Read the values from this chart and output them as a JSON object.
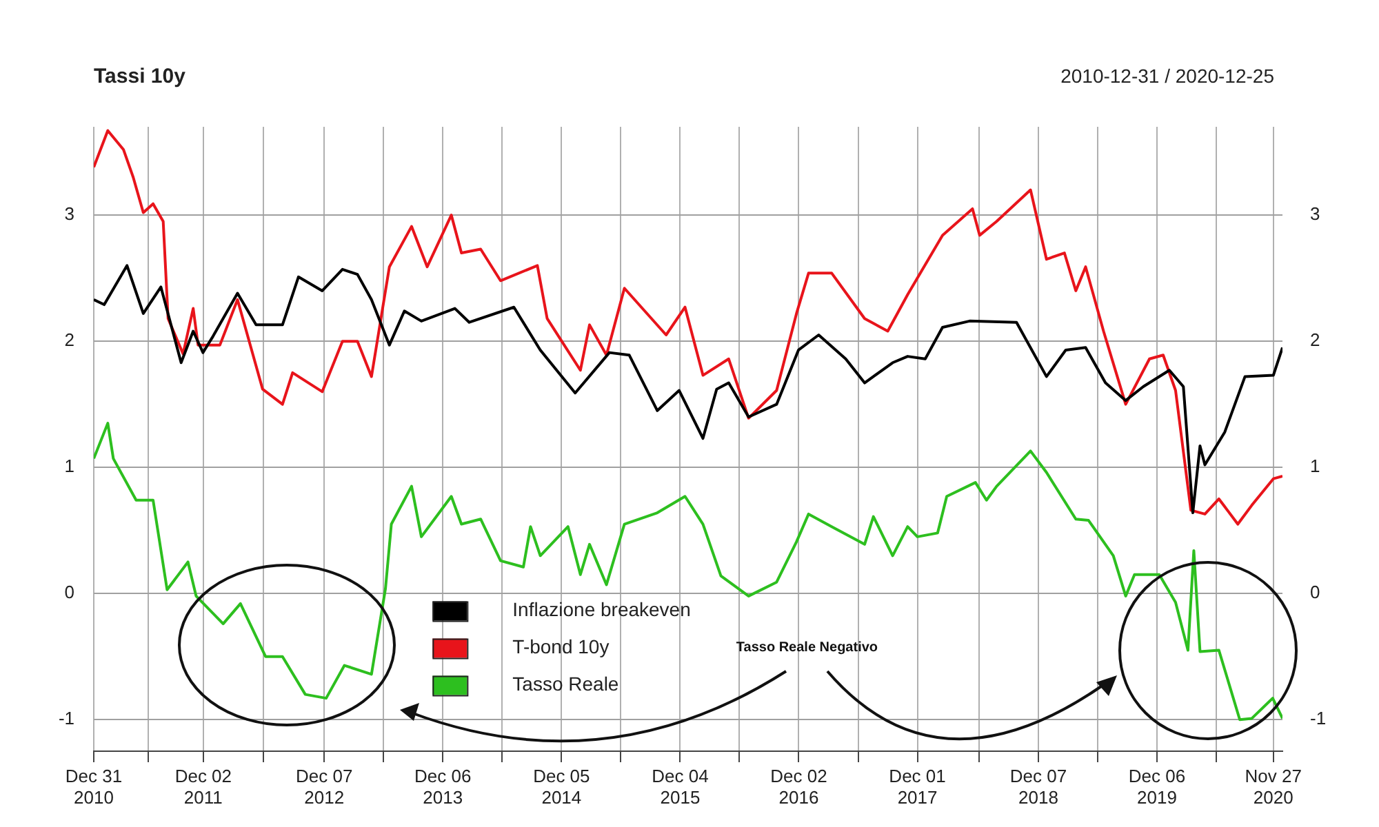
{
  "chart_data": {
    "type": "line",
    "title": "Tassi 10y",
    "subtitle": "2010-12-31 / 2020-12-25",
    "annotations": [
      "Tasso Reale Negativo"
    ],
    "xlim": [
      "2010-12-31",
      "2020-12-25"
    ],
    "xticks": [
      {
        "value": "2010-12-31",
        "label": "Dec 31 2010"
      },
      {
        "value": "2011-06-17",
        "label": null
      },
      {
        "value": "2011-12-02",
        "label": "Dec 02 2011"
      },
      {
        "value": "2012-06-04",
        "label": null
      },
      {
        "value": "2012-12-07",
        "label": "Dec 07 2012"
      },
      {
        "value": "2013-06-07",
        "label": null
      },
      {
        "value": "2013-12-06",
        "label": "Dec 06 2013"
      },
      {
        "value": "2014-06-06",
        "label": null
      },
      {
        "value": "2014-12-05",
        "label": "Dec 05 2014"
      },
      {
        "value": "2015-06-05",
        "label": null
      },
      {
        "value": "2015-12-04",
        "label": "Dec 04 2015"
      },
      {
        "value": "2016-06-03",
        "label": null
      },
      {
        "value": "2016-12-02",
        "label": "Dec 02 2016"
      },
      {
        "value": "2017-06-02",
        "label": null
      },
      {
        "value": "2017-12-01",
        "label": "Dec 01 2017"
      },
      {
        "value": "2018-06-08",
        "label": null
      },
      {
        "value": "2018-12-07",
        "label": "Dec 07 2018"
      },
      {
        "value": "2019-06-07",
        "label": null
      },
      {
        "value": "2019-12-06",
        "label": "Dec 06 2019"
      },
      {
        "value": "2020-06-05",
        "label": null
      },
      {
        "value": "2020-11-27",
        "label": "Nov 27 2020"
      }
    ],
    "ylim": [
      -1.25,
      3.7
    ],
    "yticks": [
      -1,
      0,
      1,
      2,
      3
    ],
    "y2lim": [
      -1.25,
      3.7
    ],
    "y2ticks": [
      -1,
      0,
      1,
      2,
      3
    ],
    "grid": true,
    "legend": "bottom",
    "marker": "none",
    "series": [
      {
        "name": "Inflazione breakeven",
        "color": "#000000",
        "x": [
          "2010-12-31",
          "2011-02-01",
          "2011-04-12",
          "2011-06-01",
          "2011-07-25",
          "2011-09-25",
          "2011-11-01",
          "2011-12-01",
          "2012-01-01",
          "2012-03-16",
          "2012-05-12",
          "2012-08-01",
          "2012-09-19",
          "2012-12-01",
          "2013-02-01",
          "2013-03-19",
          "2013-05-01",
          "2013-06-25",
          "2013-08-10",
          "2013-10-01",
          "2014-01-12",
          "2014-02-25",
          "2014-07-12",
          "2014-10-01",
          "2015-01-16",
          "2015-05-01",
          "2015-07-01",
          "2015-09-25",
          "2015-12-01",
          "2016-02-12",
          "2016-03-25",
          "2016-05-01",
          "2016-07-01",
          "2016-09-25",
          "2016-12-01",
          "2017-02-01",
          "2017-04-25",
          "2017-06-22",
          "2017-09-16",
          "2017-11-01",
          "2017-12-25",
          "2018-02-16",
          "2018-05-10",
          "2018-10-01",
          "2019-01-01",
          "2019-03-01",
          "2019-05-01",
          "2019-07-01",
          "2019-09-01",
          "2019-10-25",
          "2020-01-13",
          "2020-02-25",
          "2020-03-25",
          "2020-04-16",
          "2020-05-01",
          "2020-07-01",
          "2020-09-01",
          "2020-11-27",
          "2020-12-25"
        ],
        "values": [
          2.33,
          2.29,
          2.6,
          2.22,
          2.43,
          1.83,
          2.08,
          1.91,
          2.04,
          2.38,
          2.13,
          2.13,
          2.51,
          2.4,
          2.57,
          2.53,
          2.33,
          1.97,
          2.24,
          2.16,
          2.26,
          2.15,
          2.27,
          1.93,
          1.59,
          1.91,
          1.89,
          1.45,
          1.61,
          1.23,
          1.62,
          1.67,
          1.4,
          1.5,
          1.93,
          2.05,
          1.86,
          1.67,
          1.83,
          1.88,
          1.86,
          2.11,
          2.16,
          2.15,
          1.72,
          1.93,
          1.95,
          1.67,
          1.53,
          1.64,
          1.77,
          1.64,
          0.64,
          1.17,
          1.02,
          1.28,
          1.72,
          1.73,
          1.95
        ]
      },
      {
        "name": "T-bond 10y",
        "color": "#e8141b",
        "x": [
          "2010-12-31",
          "2011-02-12",
          "2011-04-01",
          "2011-05-01",
          "2011-06-01",
          "2011-07-01",
          "2011-08-01",
          "2011-08-16",
          "2011-10-01",
          "2011-11-01",
          "2011-11-16",
          "2012-01-22",
          "2012-03-16",
          "2012-06-01",
          "2012-08-01",
          "2012-09-01",
          "2012-12-01",
          "2013-02-01",
          "2013-03-19",
          "2013-05-01",
          "2013-06-25",
          "2013-09-01",
          "2013-10-19",
          "2014-01-01",
          "2014-02-01",
          "2014-04-01",
          "2014-06-01",
          "2014-09-22",
          "2014-10-22",
          "2015-02-01",
          "2015-03-01",
          "2015-04-22",
          "2015-06-16",
          "2015-10-22",
          "2015-12-19",
          "2016-02-12",
          "2016-05-01",
          "2016-07-01",
          "2016-09-25",
          "2016-11-25",
          "2017-01-01",
          "2017-03-13",
          "2017-06-22",
          "2017-09-01",
          "2017-11-01",
          "2018-02-16",
          "2018-05-19",
          "2018-06-10",
          "2018-08-01",
          "2018-11-13",
          "2019-01-01",
          "2019-02-25",
          "2019-04-01",
          "2019-05-01",
          "2019-06-25",
          "2019-09-01",
          "2019-11-13",
          "2019-12-25",
          "2020-02-01",
          "2020-03-19",
          "2020-05-01",
          "2020-06-13",
          "2020-08-10",
          "2020-09-22",
          "2020-11-27",
          "2020-12-25"
        ],
        "values": [
          3.38,
          3.67,
          3.52,
          3.3,
          3.02,
          3.09,
          2.95,
          2.18,
          1.9,
          2.26,
          1.97,
          1.97,
          2.33,
          1.62,
          1.5,
          1.75,
          1.6,
          2.0,
          2.0,
          1.72,
          2.59,
          2.91,
          2.59,
          3.0,
          2.7,
          2.73,
          2.48,
          2.6,
          2.18,
          1.77,
          2.13,
          1.89,
          2.42,
          2.05,
          2.27,
          1.73,
          1.86,
          1.39,
          1.61,
          2.22,
          2.54,
          2.54,
          2.18,
          2.08,
          2.37,
          2.84,
          3.05,
          2.84,
          2.95,
          3.2,
          2.65,
          2.7,
          2.4,
          2.59,
          2.08,
          1.5,
          1.86,
          1.89,
          1.61,
          0.66,
          0.63,
          0.75,
          0.55,
          0.7,
          0.91,
          0.93
        ]
      },
      {
        "name": "Tasso Reale",
        "color": "#2dbf1f",
        "x": [
          "2010-12-31",
          "2011-02-12",
          "2011-03-01",
          "2011-05-10",
          "2011-07-01",
          "2011-08-13",
          "2011-10-16",
          "2011-11-10",
          "2012-02-01",
          "2012-03-25",
          "2012-06-10",
          "2012-08-01",
          "2012-10-10",
          "2012-12-13",
          "2013-02-07",
          "2013-05-01",
          "2013-06-13",
          "2013-07-01",
          "2013-09-01",
          "2013-10-01",
          "2014-01-01",
          "2014-02-01",
          "2014-04-01",
          "2014-06-01",
          "2014-08-10",
          "2014-09-01",
          "2014-10-01",
          "2014-12-25",
          "2015-02-01",
          "2015-03-01",
          "2015-04-22",
          "2015-06-16",
          "2015-09-25",
          "2015-12-19",
          "2016-02-12",
          "2016-04-07",
          "2016-07-01",
          "2016-09-25",
          "2016-11-25",
          "2017-01-01",
          "2017-03-13",
          "2017-06-22",
          "2017-07-19",
          "2017-09-16",
          "2017-11-01",
          "2017-12-01",
          "2018-02-01",
          "2018-03-01",
          "2018-05-28",
          "2018-07-01",
          "2018-08-01",
          "2018-11-13",
          "2019-01-01",
          "2019-04-01",
          "2019-05-10",
          "2019-07-25",
          "2019-09-01",
          "2019-09-28",
          "2019-12-13",
          "2020-02-01",
          "2020-03-10",
          "2020-03-28",
          "2020-04-16",
          "2020-06-13",
          "2020-08-16",
          "2020-09-22",
          "2020-11-25",
          "2020-12-25"
        ],
        "values": [
          1.07,
          1.35,
          1.07,
          0.74,
          0.74,
          0.03,
          0.25,
          -0.02,
          -0.24,
          -0.08,
          -0.5,
          -0.5,
          -0.8,
          -0.83,
          -0.57,
          -0.64,
          0.04,
          0.55,
          0.85,
          0.45,
          0.77,
          0.55,
          0.59,
          0.26,
          0.21,
          0.53,
          0.3,
          0.53,
          0.15,
          0.39,
          0.07,
          0.55,
          0.64,
          0.77,
          0.55,
          0.14,
          -0.02,
          0.09,
          0.41,
          0.63,
          0.53,
          0.39,
          0.61,
          0.3,
          0.53,
          0.45,
          0.48,
          0.77,
          0.88,
          0.74,
          0.85,
          1.13,
          0.96,
          0.59,
          0.58,
          0.3,
          -0.02,
          0.15,
          0.15,
          -0.07,
          -0.45,
          0.34,
          -0.46,
          -0.45,
          -1.0,
          -0.99,
          -0.83,
          -0.99
        ]
      }
    ]
  }
}
